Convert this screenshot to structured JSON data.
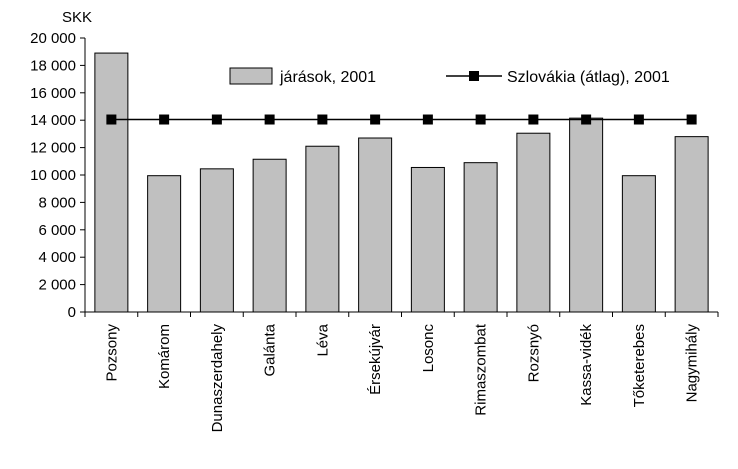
{
  "chart_data": {
    "type": "bar",
    "unit_label": "SKK",
    "categories": [
      "Pozsony",
      "Komárom",
      "Dunaszerdahely",
      "Galánta",
      "Léva",
      "Érsekújvár",
      "Losonc",
      "Rimaszombat",
      "Rozsnyó",
      "Kassa-vidék",
      "Tőketerebes",
      "Nagymihály"
    ],
    "series": [
      {
        "name": "járások, 2001",
        "type": "bar",
        "color": "#c0c0c0",
        "values": [
          18900,
          9950,
          10450,
          11150,
          12100,
          12700,
          10550,
          10900,
          13050,
          14150,
          9950,
          12800
        ]
      },
      {
        "name": "Szlovákia (átlag), 2001",
        "type": "line",
        "color": "#000000",
        "values": [
          14050,
          14050,
          14050,
          14050,
          14050,
          14050,
          14050,
          14050,
          14050,
          14050,
          14050,
          14050
        ]
      }
    ],
    "ylim": [
      0,
      20000
    ],
    "yticks": [
      0,
      2000,
      4000,
      6000,
      8000,
      10000,
      12000,
      14000,
      16000,
      18000,
      20000
    ],
    "ytick_labels": [
      "0",
      "2 000",
      "4 000",
      "6 000",
      "8 000",
      "10 000",
      "12 000",
      "14 000",
      "16 000",
      "18 000",
      "20 000"
    ],
    "grid": false,
    "legend_position": "top-right"
  }
}
